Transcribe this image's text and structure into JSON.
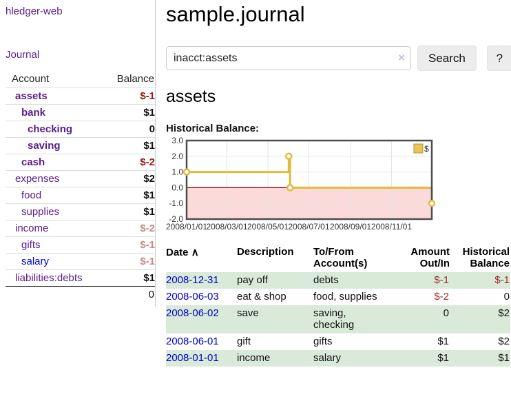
{
  "app": {
    "brand": "hledger-web"
  },
  "nav": {
    "journal": "Journal"
  },
  "sidebar": {
    "header": {
      "account": "Account",
      "balance": "Balance"
    },
    "accounts": [
      {
        "name": "assets",
        "balance": "$-1",
        "indent": 1,
        "bold": true,
        "dim": false,
        "link": "purple"
      },
      {
        "name": "bank",
        "balance": "$1",
        "indent": 2,
        "bold": true,
        "dim": false,
        "link": "purple"
      },
      {
        "name": "checking",
        "balance": "0",
        "indent": 3,
        "bold": true,
        "dim": false,
        "link": "purple"
      },
      {
        "name": "saving",
        "balance": "$1",
        "indent": 3,
        "bold": true,
        "dim": false,
        "link": "purple"
      },
      {
        "name": "cash",
        "balance": "$-2",
        "indent": 2,
        "bold": true,
        "dim": false,
        "link": "purple"
      },
      {
        "name": "expenses",
        "balance": "$2",
        "indent": 1,
        "bold": false,
        "dim": false,
        "link": "purple"
      },
      {
        "name": "food",
        "balance": "$1",
        "indent": 2,
        "bold": false,
        "dim": false,
        "link": "purple"
      },
      {
        "name": "supplies",
        "balance": "$1",
        "indent": 2,
        "bold": false,
        "dim": false,
        "link": "purple"
      },
      {
        "name": "income",
        "balance": "$-2",
        "indent": 1,
        "bold": false,
        "dim": true,
        "link": "purple"
      },
      {
        "name": "gifts",
        "balance": "$-1",
        "indent": 2,
        "bold": false,
        "dim": true,
        "link": "purple"
      },
      {
        "name": "salary",
        "balance": "$-1",
        "indent": 2,
        "bold": false,
        "dim": true,
        "link": "blue"
      },
      {
        "name": "liabilities:debts",
        "balance": "$1",
        "indent": 1,
        "bold": false,
        "dim": false,
        "link": "purple"
      }
    ],
    "total": "0"
  },
  "main": {
    "title": "sample.journal",
    "account_title": "assets",
    "chart_heading": "Historical Balance:"
  },
  "search": {
    "value": "inacct:assets",
    "clear_icon": "×",
    "search_label": "Search",
    "help_label": "?"
  },
  "chart_data": {
    "type": "line",
    "step": true,
    "title": "Historical Balance:",
    "series": [
      {
        "name": "$",
        "points": [
          [
            "2008-01-01",
            1
          ],
          [
            "2008-06-01",
            2
          ],
          [
            "2008-06-03",
            0
          ],
          [
            "2008-12-31",
            -1
          ]
        ]
      }
    ],
    "xlim": [
      "2008-01-01",
      "2008-12-31"
    ],
    "ylim": [
      -2,
      3
    ],
    "y_ticks": [
      "3.0",
      "2.0",
      "1.0",
      "0.0",
      "-1.0",
      "-2.0"
    ],
    "x_ticks": [
      "2008/01/01",
      "2008/03/01",
      "2008/05/01",
      "2008/07/01",
      "2008/09/01",
      "2008/11/01"
    ],
    "legend": [
      {
        "label": "$",
        "color": "#e9c455"
      }
    ],
    "legend_position": "top-right",
    "grid": true,
    "colors": {
      "line": "#e2ba3a",
      "marker_fill": "#ffffff",
      "negative_fill": "#fcdada",
      "zero_line": "#8b0000",
      "grid": "#e4e4e4",
      "border": "#4d4d4d",
      "legend_border": "#b89530"
    }
  },
  "register": {
    "columns": [
      "Date",
      "Description",
      "To/From Account(s)",
      "Amount Out/In",
      "Historical Balance"
    ],
    "sort_indicator": "∧",
    "sorted_column": "Date",
    "rows": [
      {
        "date": "2008-12-31",
        "description": "pay off",
        "accounts": "debts",
        "amount": "$-1",
        "balance": "$-1"
      },
      {
        "date": "2008-06-03",
        "description": "eat & shop",
        "accounts": "food, supplies",
        "amount": "$-2",
        "balance": "0"
      },
      {
        "date": "2008-06-02",
        "description": "save",
        "accounts": "saving, checking",
        "amount": "0",
        "balance": "$2"
      },
      {
        "date": "2008-06-01",
        "description": "gift",
        "accounts": "gifts",
        "amount": "$1",
        "balance": "$2"
      },
      {
        "date": "2008-01-01",
        "description": "income",
        "accounts": "salary",
        "amount": "$1",
        "balance": "$1"
      }
    ]
  }
}
